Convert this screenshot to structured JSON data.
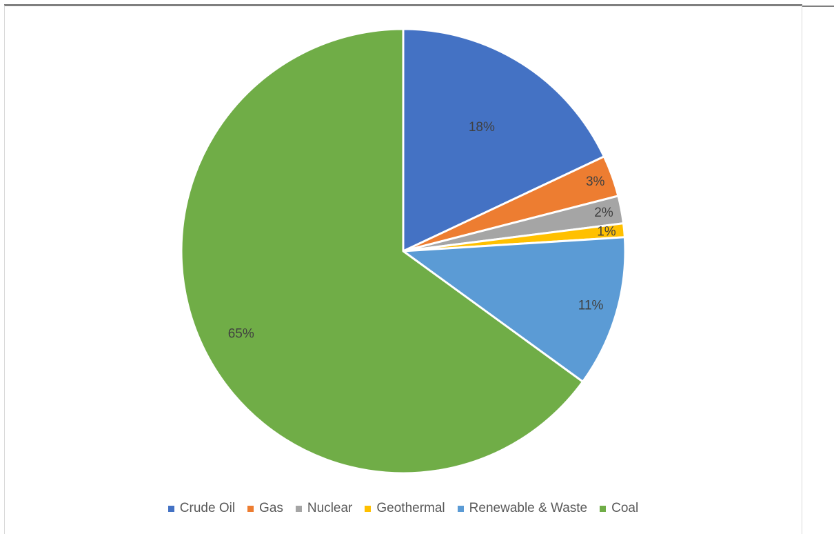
{
  "chart_data": {
    "type": "pie",
    "title": "",
    "slices": [
      {
        "label": "Crude Oil",
        "value": 18,
        "data_label": "18%",
        "color": "#4472C4"
      },
      {
        "label": "Gas",
        "value": 3,
        "data_label": "3%",
        "color": "#ED7D31"
      },
      {
        "label": "Nuclear",
        "value": 2,
        "data_label": "2%",
        "color": "#A5A5A5"
      },
      {
        "label": "Geothermal",
        "value": 1,
        "data_label": "1%",
        "color": "#FFC000"
      },
      {
        "label": "Renewable & Waste",
        "value": 11,
        "data_label": "11%",
        "color": "#5B9BD5"
      },
      {
        "label": "Coal",
        "value": 65,
        "data_label": "65%",
        "color": "#70AD47"
      }
    ],
    "legend_position": "bottom",
    "start_angle": "12 o'clock",
    "direction": "clockwise"
  }
}
